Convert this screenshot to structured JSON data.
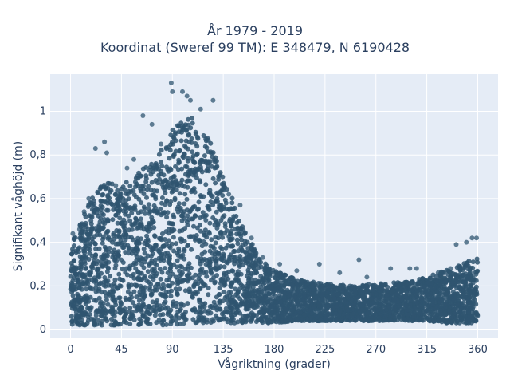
{
  "chart_data": {
    "type": "scatter",
    "title_line1": "År 1979 - 2019",
    "title_line2": "Koordinat (Sweref 99 TM): E 348479, N 6190428",
    "xlabel": "Vågriktning (grader)",
    "ylabel": "Signifikant våghöjd (m)",
    "xlim": [
      -18,
      378
    ],
    "ylim": [
      -0.04,
      1.17
    ],
    "x_ticks": [
      0,
      45,
      90,
      135,
      180,
      225,
      270,
      315,
      360
    ],
    "x_tick_labels": [
      "0",
      "45",
      "90",
      "135",
      "180",
      "225",
      "270",
      "315",
      "360"
    ],
    "y_ticks": [
      0,
      0.2,
      0.4,
      0.6,
      0.8,
      1
    ],
    "y_tick_labels": [
      "0",
      "0,2",
      "0,4",
      "0,6",
      "0,8",
      "1"
    ],
    "grid": true,
    "marker_color": "#2f5570",
    "background_color": "#e5ecf6",
    "envelope": [
      {
        "x": 0,
        "ymin": 0.02,
        "ymax": 0.42
      },
      {
        "x": 10,
        "ymin": 0.02,
        "ymax": 0.5
      },
      {
        "x": 20,
        "ymin": 0.02,
        "ymax": 0.62
      },
      {
        "x": 30,
        "ymin": 0.02,
        "ymax": 0.7
      },
      {
        "x": 45,
        "ymin": 0.02,
        "ymax": 0.66
      },
      {
        "x": 60,
        "ymin": 0.02,
        "ymax": 0.72
      },
      {
        "x": 75,
        "ymin": 0.02,
        "ymax": 0.78
      },
      {
        "x": 90,
        "ymin": 0.02,
        "ymax": 0.92
      },
      {
        "x": 105,
        "ymin": 0.03,
        "ymax": 0.98
      },
      {
        "x": 120,
        "ymin": 0.03,
        "ymax": 0.9
      },
      {
        "x": 135,
        "ymin": 0.03,
        "ymax": 0.72
      },
      {
        "x": 150,
        "ymin": 0.03,
        "ymax": 0.5
      },
      {
        "x": 165,
        "ymin": 0.03,
        "ymax": 0.35
      },
      {
        "x": 180,
        "ymin": 0.03,
        "ymax": 0.27
      },
      {
        "x": 200,
        "ymin": 0.04,
        "ymax": 0.23
      },
      {
        "x": 225,
        "ymin": 0.04,
        "ymax": 0.21
      },
      {
        "x": 250,
        "ymin": 0.04,
        "ymax": 0.2
      },
      {
        "x": 270,
        "ymin": 0.04,
        "ymax": 0.21
      },
      {
        "x": 300,
        "ymin": 0.04,
        "ymax": 0.22
      },
      {
        "x": 315,
        "ymin": 0.04,
        "ymax": 0.24
      },
      {
        "x": 330,
        "ymin": 0.03,
        "ymax": 0.27
      },
      {
        "x": 345,
        "ymin": 0.03,
        "ymax": 0.3
      },
      {
        "x": 360,
        "ymin": 0.03,
        "ymax": 0.33
      }
    ],
    "outliers": [
      {
        "x": 89,
        "y": 1.13
      },
      {
        "x": 90,
        "y": 1.09
      },
      {
        "x": 99,
        "y": 1.09
      },
      {
        "x": 103,
        "y": 1.07
      },
      {
        "x": 106,
        "y": 1.05
      },
      {
        "x": 126,
        "y": 1.05
      },
      {
        "x": 64,
        "y": 0.98
      },
      {
        "x": 72,
        "y": 0.94
      },
      {
        "x": 115,
        "y": 1.01
      },
      {
        "x": 30,
        "y": 0.86
      },
      {
        "x": 22,
        "y": 0.83
      },
      {
        "x": 32,
        "y": 0.81
      },
      {
        "x": 50,
        "y": 0.74
      },
      {
        "x": 56,
        "y": 0.78
      },
      {
        "x": 80,
        "y": 0.85
      },
      {
        "x": 140,
        "y": 0.62
      },
      {
        "x": 150,
        "y": 0.57
      },
      {
        "x": 160,
        "y": 0.42
      },
      {
        "x": 170,
        "y": 0.33
      },
      {
        "x": 185,
        "y": 0.3
      },
      {
        "x": 200,
        "y": 0.27
      },
      {
        "x": 220,
        "y": 0.3
      },
      {
        "x": 238,
        "y": 0.26
      },
      {
        "x": 255,
        "y": 0.32
      },
      {
        "x": 262,
        "y": 0.24
      },
      {
        "x": 283,
        "y": 0.28
      },
      {
        "x": 300,
        "y": 0.28
      },
      {
        "x": 306,
        "y": 0.28
      },
      {
        "x": 325,
        "y": 0.26
      },
      {
        "x": 336,
        "y": 0.28
      },
      {
        "x": 341,
        "y": 0.39
      },
      {
        "x": 350,
        "y": 0.4
      },
      {
        "x": 355,
        "y": 0.42
      },
      {
        "x": 359,
        "y": 0.42
      },
      {
        "x": 2,
        "y": 0.44
      },
      {
        "x": 8,
        "y": 0.46
      },
      {
        "x": 12,
        "y": 0.54
      },
      {
        "x": 16,
        "y": 0.6
      },
      {
        "x": 40,
        "y": 0.66
      }
    ]
  }
}
